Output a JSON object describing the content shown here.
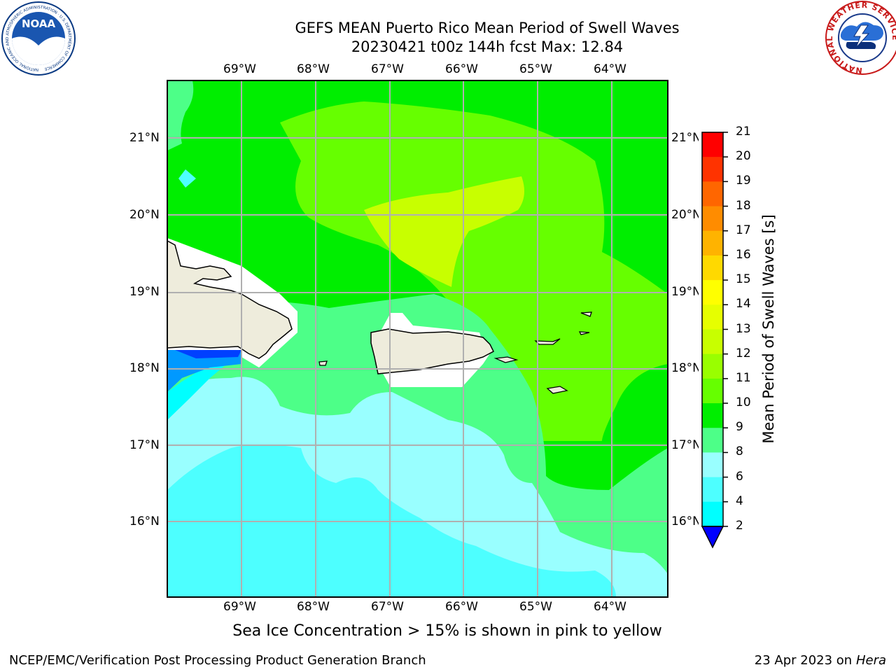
{
  "title": {
    "line1": "GEFS MEAN Puerto Rico Mean Period of Swell Waves",
    "line2": "20230421 t00z 144h fcst   Max: 12.84"
  },
  "map": {
    "lon_labels": [
      "69°W",
      "68°W",
      "67°W",
      "66°W",
      "65°W",
      "64°W"
    ],
    "lat_labels": [
      "21°N",
      "20°N",
      "19°N",
      "18°N",
      "17°N",
      "16°N"
    ]
  },
  "colorbar": {
    "label": "Mean Period of Swell Waves [s]",
    "ticks": [
      "21",
      "20",
      "19",
      "18",
      "17",
      "16",
      "15",
      "14",
      "13",
      "12",
      "11",
      "10",
      "9",
      "8",
      "6",
      "4",
      "2"
    ],
    "colors": [
      "#ff0000",
      "#ff3300",
      "#ff6600",
      "#ff8c00",
      "#ffb300",
      "#ffd900",
      "#ffff00",
      "#e6ff00",
      "#c8ff00",
      "#99ff00",
      "#66ff00",
      "#00ee00",
      "#4dff88",
      "#99ffff",
      "#4dffff",
      "#00ffff",
      "#0099ff",
      "#0040ff",
      "#0000ff"
    ]
  },
  "caption": "Sea Ice Concentration > 15% is shown in pink to yellow",
  "footer": {
    "left": "NCEP/EMC/Verification Post Processing Product Generation Branch",
    "right_prefix": "23 Apr 2023 on ",
    "right_machine": "Hera"
  },
  "logos": {
    "left": "NOAA",
    "left_ring": "NATIONAL OCEANIC AND ATMOSPHERIC ADMINISTRATION · U.S. DEPARTMENT OF COMMERCE",
    "right_ring": "NATIONAL WEATHER SERVICE"
  }
}
